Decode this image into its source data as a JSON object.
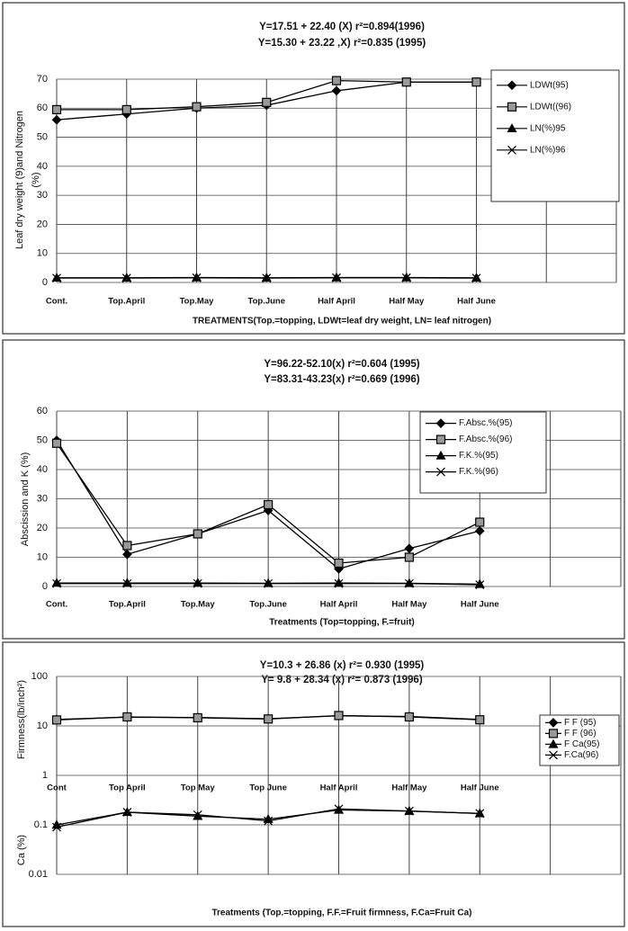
{
  "chart_data": [
    {
      "type": "line",
      "annotations": [
        "Y=17.51 + 22.40 (X)  r²=0.894(1996)",
        "Y=15.30 + 23.22 ,X)  r²=0.835 (1995)"
      ],
      "ylabel": [
        "Leaf dry weight (9)and Nitrogen",
        "(%)"
      ],
      "xlabel": "TREATMENTS(Top.=topping, LDWt=leaf dry weight, LN= leaf nitrogen)",
      "categories": [
        "Cont.",
        "Top.April",
        "Top.May",
        "Top.June",
        "Half April",
        "Half May",
        "Half June",
        null,
        null
      ],
      "ylim": [
        0,
        70
      ],
      "yticks": [
        0,
        10,
        20,
        30,
        40,
        50,
        60,
        70
      ],
      "grid": true,
      "legend": "upper right",
      "series": [
        {
          "name": "LDWt(95)",
          "color": "#000000",
          "marker": "diamond",
          "values": [
            56,
            58,
            60,
            61,
            66,
            69,
            69,
            null,
            null
          ]
        },
        {
          "name": "LDWt((96)",
          "color": "#000000",
          "marker": "square",
          "values": [
            59.5,
            59.5,
            60.5,
            62,
            69.5,
            69,
            69,
            null,
            null
          ]
        },
        {
          "name": "LN(%)95",
          "color": "#000000",
          "marker": "triangle",
          "values": [
            1.6,
            1.6,
            1.7,
            1.6,
            1.7,
            1.7,
            1.6,
            null,
            null
          ]
        },
        {
          "name": "LN(%)96",
          "color": "#000000",
          "marker": "x",
          "values": [
            1.5,
            1.5,
            1.6,
            1.5,
            1.6,
            1.6,
            1.5,
            null,
            null
          ]
        }
      ]
    },
    {
      "type": "line",
      "annotations": [
        "Y=96.22-52.10(x)  r²=0.604 (1995)",
        "Y=83.31-43.23(x)  r²=0.669 (1996)"
      ],
      "ylabel": [
        "Abscission and K (%)"
      ],
      "xlabel": "Treatments (Top=topping, F.=fruit)",
      "categories": [
        "Cont.",
        "Top.April",
        "Top.May",
        "Top.June",
        "Half April",
        "Half May",
        "Half June",
        null,
        null
      ],
      "ylim": [
        0,
        60
      ],
      "yticks": [
        0,
        10,
        20,
        30,
        40,
        50,
        60
      ],
      "grid": true,
      "legend": "upper right",
      "series": [
        {
          "name": "F.Absc.%(95)",
          "color": "#000000",
          "marker": "diamond",
          "values": [
            50,
            11,
            18,
            26,
            6,
            13,
            19,
            null,
            null
          ]
        },
        {
          "name": "F.Absc.%(96)",
          "color": "#000000",
          "marker": "square",
          "values": [
            49,
            14,
            18,
            28,
            8,
            10,
            22,
            null,
            null
          ]
        },
        {
          "name": "F.K.%(95)",
          "color": "#000000",
          "marker": "triangle",
          "values": [
            1.2,
            1.2,
            1.2,
            1.1,
            1.2,
            1.1,
            0.8,
            null,
            null
          ]
        },
        {
          "name": "F.K.%(96)",
          "color": "#000000",
          "marker": "x",
          "values": [
            1,
            1,
            1,
            1,
            1,
            1,
            0.6,
            null,
            null
          ]
        }
      ]
    },
    {
      "type": "line",
      "annotations": [
        "Y=10.3 + 26.86 (x)  r²= 0.930 (1995)",
        "Y=  9.8 + 28.34 (x)  r²= 0.873 (1996)"
      ],
      "ylabel": [
        "Firmness(lb/inch²)",
        "Ca (%)"
      ],
      "xlabel": "Treatments (Top.=topping, F.F.=Fruit firmness, F.Ca=Fruit Ca)",
      "categories": [
        "Cont",
        "Top April",
        "Top May",
        "Top June",
        "Half April",
        "Half May",
        "Half June",
        null,
        null
      ],
      "ylim": [
        0.01,
        100
      ],
      "yticks": [
        0.01,
        0.1,
        1,
        10,
        100
      ],
      "log": true,
      "grid": true,
      "legend": "right",
      "series": [
        {
          "name": "F F (95)",
          "color": "#000000",
          "marker": "diamond",
          "values": [
            13.5,
            15,
            14.8,
            14,
            16,
            15.5,
            13.5,
            null,
            null
          ]
        },
        {
          "name": "F F (96)",
          "color": "#000000",
          "marker": "square",
          "values": [
            13.2,
            15.2,
            14.6,
            13.8,
            16.2,
            15.2,
            13.3,
            null,
            null
          ]
        },
        {
          "name": "F Ca(95)",
          "color": "#000000",
          "marker": "triangle",
          "values": [
            0.1,
            0.18,
            0.15,
            0.13,
            0.2,
            0.19,
            0.17,
            null,
            null
          ]
        },
        {
          "name": "F.Ca(96)",
          "color": "#000000",
          "marker": "x",
          "values": [
            0.09,
            0.18,
            0.16,
            0.12,
            0.21,
            0.19,
            0.17,
            null,
            null
          ]
        }
      ]
    }
  ]
}
